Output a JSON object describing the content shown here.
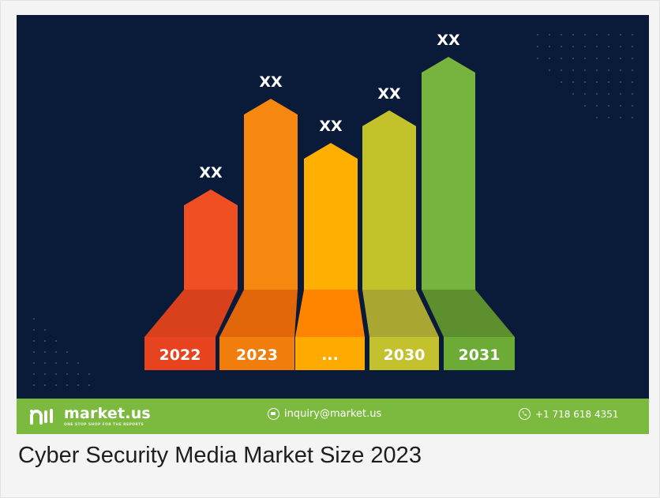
{
  "chart_data": {
    "type": "bar",
    "categories": [
      "2022",
      "2023",
      "...",
      "2030",
      "2031"
    ],
    "value_labels": [
      "XX",
      "XX",
      "XX",
      "XX",
      "XX"
    ],
    "relative_heights": [
      0.43,
      0.82,
      0.63,
      0.77,
      1.0
    ],
    "colors": [
      "#f04e23",
      "#f7880f",
      "#ffaf00",
      "#c4c22a",
      "#76b33f"
    ],
    "shade_colors": [
      "#d9401c",
      "#e2660a",
      "#ff8400",
      "#a9a632",
      "#5d8f2f"
    ],
    "label_colors": [
      "#e8431f",
      "#f07d0c",
      "#ffaa00",
      "#c3c12e",
      "#6cab35"
    ],
    "background": "#0a1b3a"
  },
  "footer": {
    "brand_name": "market.us",
    "brand_tagline": "ONE STOP SHOP FOR THE REPORTS",
    "email": "inquiry@market.us",
    "phone": "+1 718 618 4351",
    "email_icon": "mail-icon",
    "phone_icon": "phone-icon",
    "color": "#7cba3f"
  },
  "caption": "Cyber Security Media Market Size 2023"
}
